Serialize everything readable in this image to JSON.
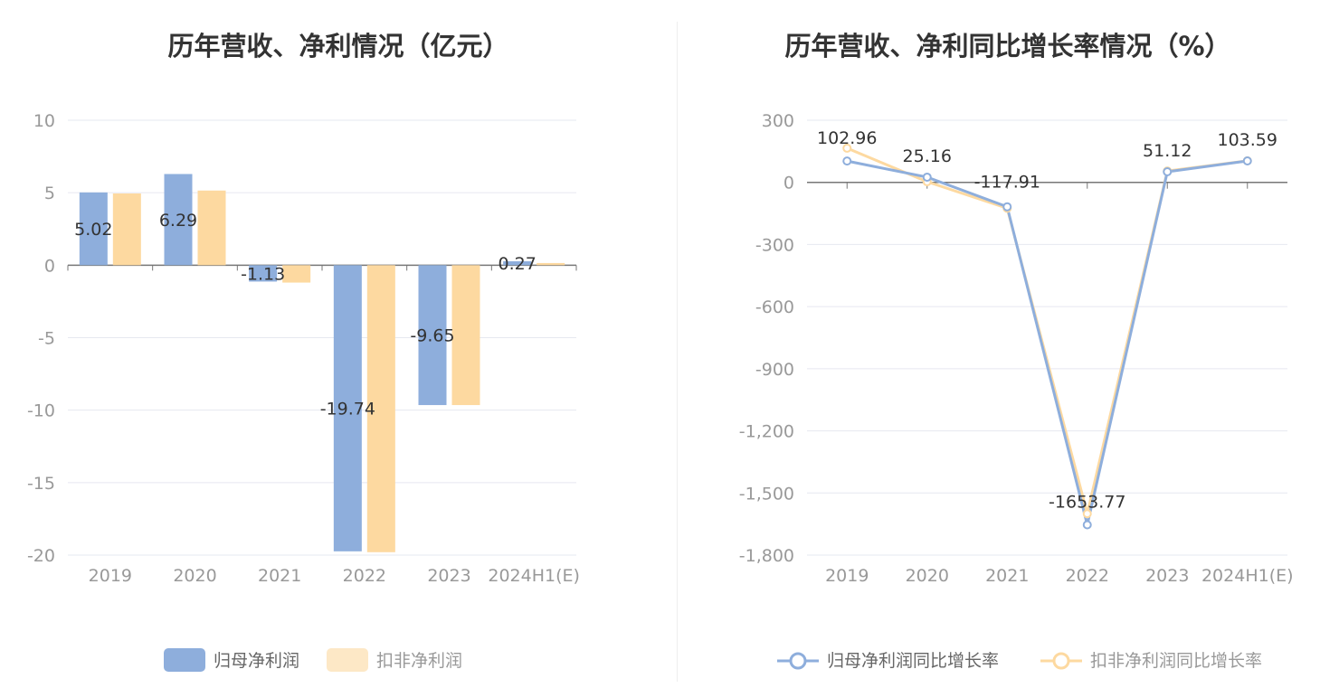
{
  "charts": [
    {
      "type": "bar",
      "title": "历年营收、净利情况（亿元）",
      "categories": [
        "2019",
        "2020",
        "2021",
        "2022",
        "2023",
        "2024H1(E)"
      ],
      "yticks": [
        "10",
        "5",
        "0",
        "-5",
        "-10",
        "-15",
        "-20"
      ],
      "ylim": [
        -20,
        10
      ],
      "series": [
        {
          "name": "归母净利润",
          "color": "#8eaedc",
          "values": [
            5.02,
            6.29,
            -1.13,
            -19.74,
            -9.65,
            0.27
          ],
          "labels": [
            "5.02",
            "6.29",
            "-1.13",
            "-19.74",
            "-9.65",
            "0.27"
          ]
        },
        {
          "name": "扣非净利润",
          "color": "#fdd9a0",
          "values": [
            4.95,
            5.15,
            -1.2,
            -19.8,
            -9.65,
            0.15
          ]
        }
      ]
    },
    {
      "type": "line",
      "title": "历年营收、净利同比增长率情况（%）",
      "categories": [
        "2019",
        "2020",
        "2021",
        "2022",
        "2023",
        "2024H1(E)"
      ],
      "yticks": [
        "300",
        "0",
        "-300",
        "-600",
        "-900",
        "-1,200",
        "-1,500",
        "-1,800"
      ],
      "ylim": [
        -1800,
        300
      ],
      "series": [
        {
          "name": "归母净利润同比增长率",
          "color": "#8eaedc",
          "values": [
            102.96,
            25.16,
            -117.91,
            -1653.77,
            51.12,
            103.59
          ],
          "labels": [
            "102.96",
            "25.16",
            "-117.91",
            "-1653.77",
            "51.12",
            "103.59"
          ]
        },
        {
          "name": "扣非净利润同比增长率",
          "color": "#fdd9a0",
          "values": [
            165,
            3,
            -125,
            -1600,
            55,
            104
          ]
        }
      ]
    }
  ]
}
